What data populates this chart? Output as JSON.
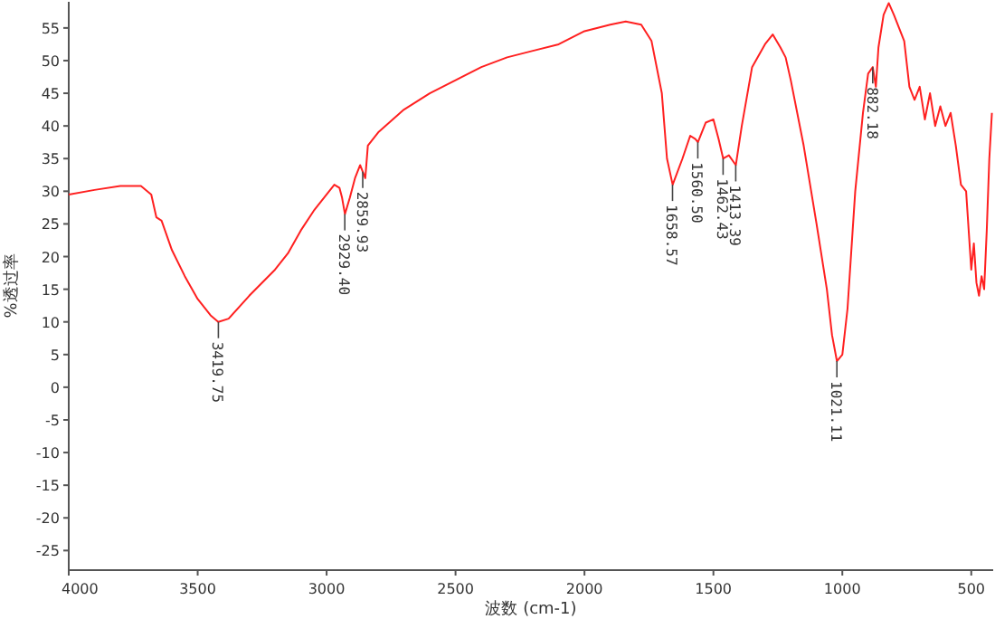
{
  "chart_data": {
    "type": "line",
    "xlabel": "波数 (cm-1)",
    "ylabel": "%透过率",
    "xlim": [
      4000,
      415
    ],
    "ylim": [
      -28,
      59
    ],
    "xticks": [
      4000,
      3500,
      3000,
      2500,
      2000,
      1500,
      1000,
      500
    ],
    "yticks": [
      -25,
      -20,
      -15,
      -10,
      -5,
      0,
      5,
      10,
      15,
      20,
      25,
      30,
      35,
      40,
      45,
      50,
      55
    ],
    "grid": false,
    "marker": "none",
    "line_style": "solid",
    "series": [
      {
        "color": "#ff2020",
        "x": [
          4000,
          3900,
          3800,
          3720,
          3680,
          3660,
          3640,
          3600,
          3550,
          3500,
          3450,
          3420,
          3380,
          3300,
          3200,
          3150,
          3100,
          3050,
          3000,
          2970,
          2950,
          2940,
          2929,
          2910,
          2890,
          2870,
          2860,
          2850,
          2840,
          2800,
          2700,
          2600,
          2500,
          2400,
          2300,
          2200,
          2100,
          2000,
          1900,
          1840,
          1780,
          1740,
          1700,
          1680,
          1658,
          1620,
          1590,
          1570,
          1560,
          1530,
          1500,
          1480,
          1462,
          1440,
          1413,
          1390,
          1350,
          1300,
          1270,
          1240,
          1220,
          1200,
          1150,
          1100,
          1060,
          1040,
          1021,
          1000,
          980,
          950,
          920,
          900,
          882,
          870,
          860,
          840,
          820,
          800,
          780,
          760,
          740,
          720,
          700,
          680,
          660,
          640,
          620,
          600,
          580,
          560,
          540,
          520,
          500,
          490,
          480,
          470,
          460,
          450,
          440,
          430,
          420
        ],
        "values": [
          29.5,
          30.2,
          30.8,
          30.8,
          29.5,
          26,
          25.5,
          21,
          17,
          13.5,
          11,
          10,
          10.5,
          14,
          18,
          20.5,
          24,
          27,
          29.5,
          31,
          30.5,
          29,
          26.5,
          29,
          32,
          34,
          33,
          32,
          37,
          39,
          42.5,
          45,
          47,
          49,
          50.5,
          51.5,
          52.5,
          54.5,
          55.5,
          56,
          55.5,
          53,
          45,
          35,
          31,
          35,
          38.5,
          38,
          37.5,
          40.5,
          41,
          38,
          35,
          35.5,
          34,
          40,
          49,
          52.5,
          54,
          52,
          50.5,
          47,
          37,
          25,
          15,
          8,
          4,
          5,
          12,
          30,
          42,
          48,
          49,
          46,
          52,
          57,
          58.8,
          57,
          55,
          53,
          46,
          44,
          46,
          41,
          45,
          40,
          43,
          40,
          42,
          37,
          31,
          30,
          18,
          22,
          16,
          14,
          17,
          15,
          24,
          35,
          42
        ]
      }
    ],
    "annotations": [
      {
        "text": "3419.75",
        "x": 3419.75,
        "y": 10
      },
      {
        "text": "2929.40",
        "x": 2929.4,
        "y": 26.5
      },
      {
        "text": "2859.93",
        "x": 2859.93,
        "y": 33
      },
      {
        "text": "1658.57",
        "x": 1658.57,
        "y": 31
      },
      {
        "text": "1560.50",
        "x": 1560.5,
        "y": 37.5
      },
      {
        "text": "1462.43",
        "x": 1462.43,
        "y": 35
      },
      {
        "text": "1413.39",
        "x": 1413.39,
        "y": 34
      },
      {
        "text": "1021.11",
        "x": 1021.11,
        "y": 4
      },
      {
        "text": "882.18",
        "x": 882.18,
        "y": 49
      }
    ]
  }
}
